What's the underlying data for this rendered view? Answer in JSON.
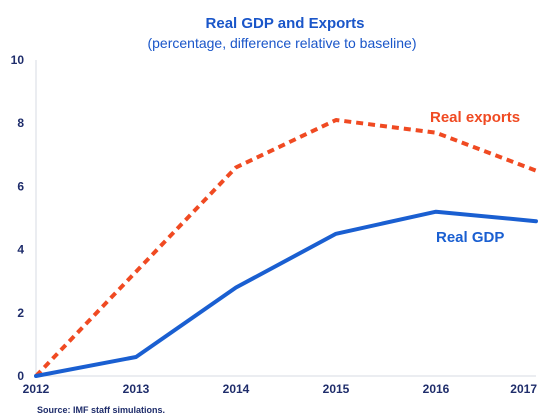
{
  "colors": {
    "title": "#1a56c9",
    "axis_text": "#1f2d6b",
    "gdp": "#1a5fd1",
    "exports": "#f04a22",
    "axis_line": "#d7dbe3"
  },
  "chart_data": {
    "type": "line",
    "title": "Real GDP and Exports",
    "subtitle": "(percentage, difference relative to baseline)",
    "xlabel": "",
    "ylabel": "",
    "categories": [
      "2012",
      "2013",
      "2014",
      "2015",
      "2016",
      "2017"
    ],
    "ylim": [
      0,
      10
    ],
    "yticks": [
      "0",
      "2",
      "4",
      "6",
      "8",
      "10"
    ],
    "grid": false,
    "series": [
      {
        "name": "Real GDP",
        "line_style": "solid",
        "values": [
          0,
          0.6,
          2.8,
          4.5,
          5.2,
          4.9
        ]
      },
      {
        "name": "Real exports",
        "line_style": "dashed",
        "values": [
          0,
          3.3,
          6.6,
          8.1,
          7.7,
          6.5
        ]
      }
    ],
    "source": "Source: IMF staff simulations."
  }
}
